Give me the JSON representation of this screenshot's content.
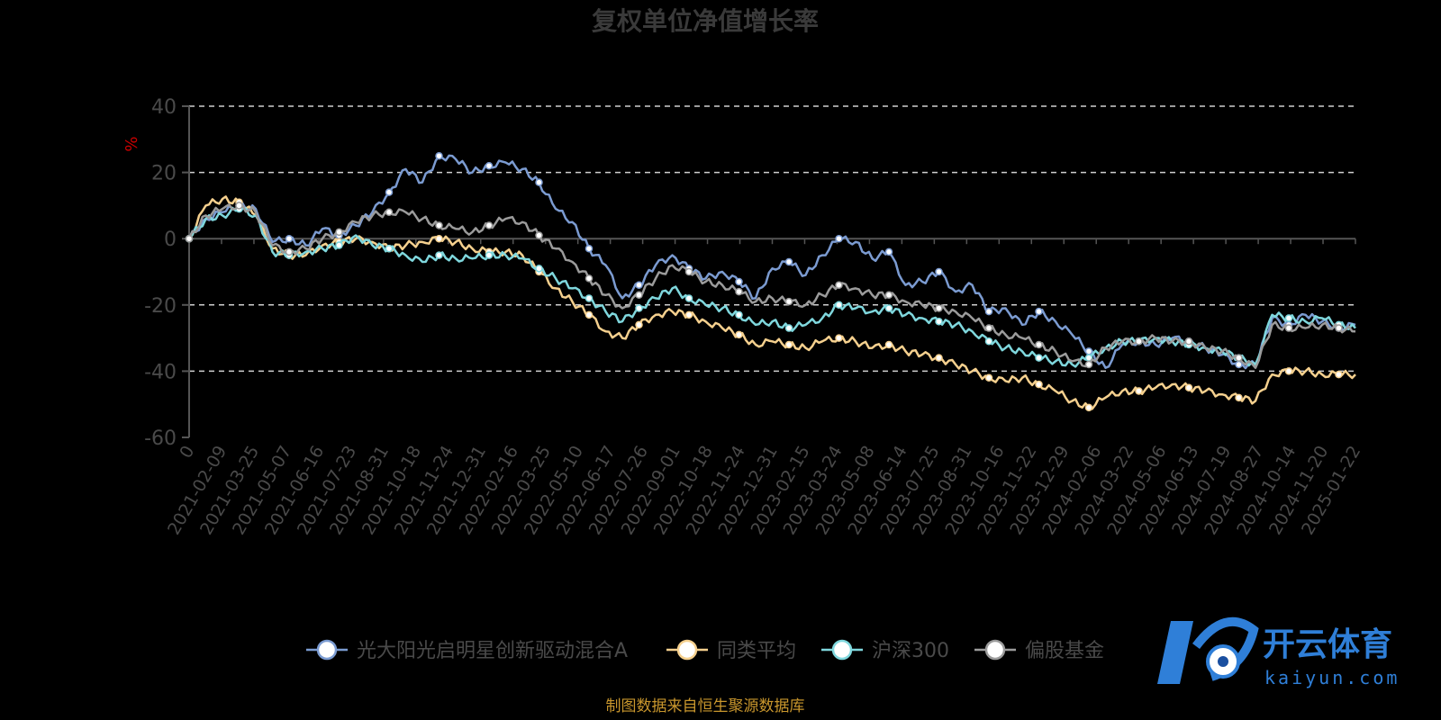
{
  "chart_data": {
    "type": "line",
    "title": "复权单位净值增长率",
    "ylabel": "%",
    "ylim": [
      -60,
      40
    ],
    "yticks": [
      40,
      20,
      0,
      -20,
      -40,
      -60
    ],
    "xticks": [
      "0",
      "2021-02-09",
      "2021-03-25",
      "2021-05-07",
      "2021-06-16",
      "2021-07-23",
      "2021-08-31",
      "2021-10-18",
      "2021-11-24",
      "2021-12-31",
      "2022-02-16",
      "2022-03-25",
      "2022-05-10",
      "2022-06-17",
      "2022-07-26",
      "2022-09-01",
      "2022-10-18",
      "2022-11-24",
      "2022-12-31",
      "2023-02-15",
      "2023-03-24",
      "2023-05-08",
      "2023-06-14",
      "2023-07-25",
      "2023-08-31",
      "2023-10-16",
      "2023-11-22",
      "2023-12-29",
      "2024-02-06",
      "2024-03-22",
      "2024-05-06",
      "2024-06-13",
      "2024-07-19",
      "2024-08-27",
      "2024-10-14",
      "2024-11-20",
      "2025-01-22"
    ],
    "grid": "dashed horizontal",
    "legend_position": "bottom",
    "series": [
      {
        "name": "光大阳光启明星创新驱动混合A",
        "color": "#7b9bd1",
        "values": [
          0,
          6,
          8,
          10,
          9,
          -1,
          0,
          -2,
          3,
          1,
          4,
          8,
          14,
          21,
          17,
          25,
          24,
          20,
          22,
          23,
          21,
          17,
          9,
          5,
          -3,
          -8,
          -18,
          -14,
          -8,
          -5,
          -9,
          -12,
          -10,
          -13,
          -18,
          -9,
          -7,
          -11,
          -5,
          0,
          -1,
          -6,
          -4,
          -14,
          -13,
          -10,
          -16,
          -14,
          -22,
          -21,
          -26,
          -22,
          -25,
          -29,
          -34,
          -39,
          -32,
          -31,
          -32,
          -30,
          -31,
          -33,
          -35,
          -38,
          -38,
          -24,
          -26,
          -23,
          -25,
          -27,
          -26
        ]
      },
      {
        "name": "同类平均",
        "color": "#f5d08e",
        "values": [
          0,
          10,
          12,
          11,
          7,
          -3,
          -5,
          -5,
          -2,
          -1,
          0,
          -1,
          -3,
          -2,
          -1,
          0,
          -1,
          -3,
          -4,
          -4,
          -5,
          -10,
          -15,
          -19,
          -23,
          -28,
          -30,
          -26,
          -23,
          -22,
          -23,
          -25,
          -27,
          -29,
          -32,
          -31,
          -32,
          -33,
          -31,
          -30,
          -31,
          -33,
          -32,
          -34,
          -35,
          -36,
          -38,
          -40,
          -42,
          -43,
          -42,
          -44,
          -46,
          -49,
          -51,
          -48,
          -46,
          -46,
          -45,
          -44,
          -45,
          -46,
          -47,
          -48,
          -49,
          -41,
          -40,
          -40,
          -41,
          -41,
          -41
        ]
      },
      {
        "name": "沪深300",
        "color": "#7fd7dd",
        "values": [
          0,
          6,
          7,
          9,
          7,
          -4,
          -5,
          -4,
          -3,
          -2,
          1,
          -2,
          -3,
          -5,
          -7,
          -5,
          -6,
          -6,
          -5,
          -5,
          -6,
          -9,
          -12,
          -15,
          -18,
          -22,
          -25,
          -21,
          -18,
          -15,
          -18,
          -20,
          -21,
          -23,
          -26,
          -25,
          -27,
          -26,
          -24,
          -20,
          -21,
          -22,
          -21,
          -23,
          -24,
          -25,
          -26,
          -28,
          -31,
          -33,
          -34,
          -36,
          -37,
          -38,
          -36,
          -33,
          -31,
          -31,
          -30,
          -31,
          -32,
          -33,
          -34,
          -36,
          -38,
          -23,
          -24,
          -25,
          -24,
          -26,
          -27
        ]
      },
      {
        "name": "偏股基金",
        "color": "#9b9b9b",
        "values": [
          0,
          7,
          9,
          10,
          8,
          -2,
          -4,
          -3,
          0,
          2,
          5,
          7,
          8,
          8,
          6,
          4,
          3,
          2,
          4,
          6,
          5,
          1,
          -3,
          -7,
          -12,
          -17,
          -21,
          -17,
          -12,
          -8,
          -10,
          -13,
          -14,
          -16,
          -19,
          -18,
          -19,
          -20,
          -17,
          -14,
          -15,
          -17,
          -17,
          -19,
          -20,
          -21,
          -22,
          -24,
          -27,
          -29,
          -30,
          -32,
          -34,
          -37,
          -38,
          -33,
          -31,
          -31,
          -30,
          -31,
          -31,
          -33,
          -34,
          -36,
          -39,
          -26,
          -27,
          -27,
          -26,
          -27,
          -28
        ]
      }
    ]
  },
  "source_text": "制图数据来自恒生聚源数据库",
  "watermark": {
    "brand_cn": "开云体育",
    "brand_en": "kaiyun.com",
    "color_primary": "#2f7fd8"
  },
  "colors": {
    "background": "#000000",
    "axis": "#555555",
    "grid": "#d0d0d0",
    "text": "#4a4a4a",
    "ylabel": "#cc0000"
  }
}
